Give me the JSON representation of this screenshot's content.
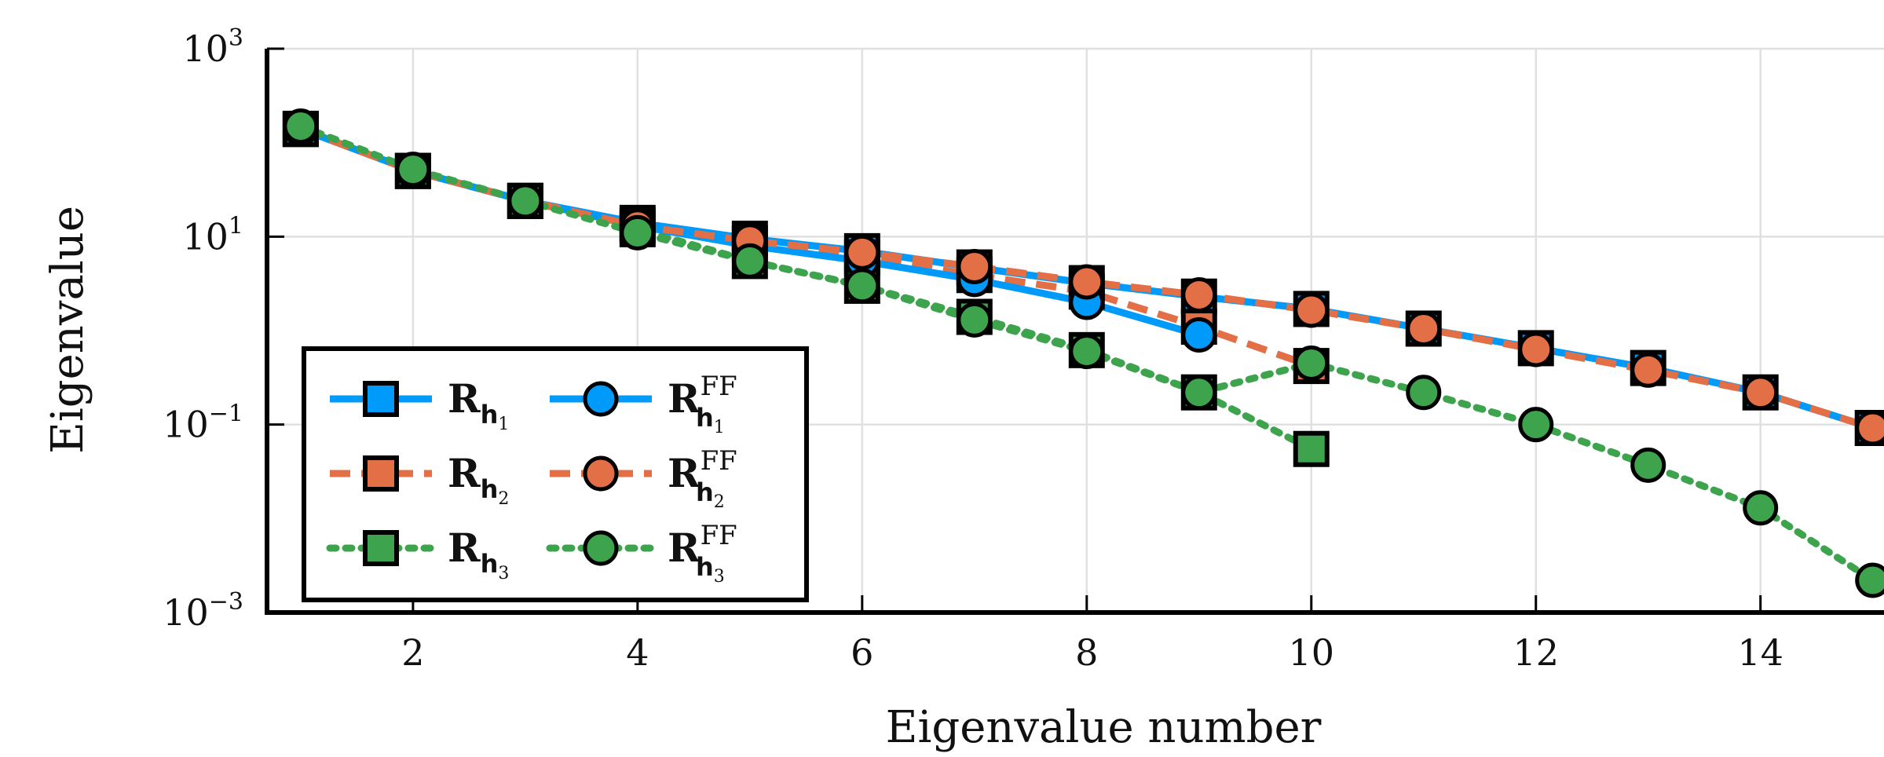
{
  "chart_data": {
    "type": "line",
    "xlabel": "Eigenvalue number",
    "ylabel": "Eigenvalue",
    "xlim": [
      0.7,
      15.1
    ],
    "ylim_log10": [
      -3,
      3
    ],
    "yscale": "log",
    "grid": true,
    "legend_placement": "bottom-left",
    "x_ticks": [
      "2",
      "4",
      "6",
      "8",
      "10",
      "12",
      "14"
    ],
    "y_ticks": [
      {
        "base": "10",
        "exp": "3",
        "log10": 3
      },
      {
        "base": "10",
        "exp": "1",
        "log10": 1
      },
      {
        "base": "10",
        "exp": "−1",
        "log10": -1
      },
      {
        "base": "10",
        "exp": "−3",
        "log10": -3
      }
    ],
    "x": [
      1,
      2,
      3,
      4,
      5,
      6,
      7,
      8,
      9,
      10,
      11,
      12,
      13,
      14,
      15
    ],
    "series": [
      {
        "name": "R_h1",
        "label_main": "R",
        "label_sub": "h",
        "label_subsub": "1",
        "label_sup": "",
        "color": "#009AFA",
        "dash": "solid",
        "marker": "square",
        "values": [
          140,
          50,
          24,
          14,
          9.5,
          7.0,
          4.7,
          3.2,
          2.3,
          1.7,
          1.05,
          0.65,
          0.4,
          0.22,
          0.092
        ]
      },
      {
        "name": "R_h2",
        "label_main": "R",
        "label_sub": "h",
        "label_subsub": "2",
        "label_sup": "",
        "color": "#E26F46",
        "dash": "dash",
        "marker": "square",
        "values": [
          140,
          50,
          24,
          13,
          8.5,
          6.0,
          3.9,
          2.6,
          1.1,
          0.42,
          null,
          null,
          null,
          null,
          null
        ]
      },
      {
        "name": "R_h3",
        "label_main": "R",
        "label_sub": "h",
        "label_subsub": "3",
        "label_sup": "",
        "color": "#3DA44D",
        "dash": "dot",
        "marker": "square",
        "values": [
          140,
          50,
          24,
          12,
          5.5,
          3.0,
          1.4,
          0.62,
          0.22,
          0.055,
          null,
          null,
          null,
          null,
          null
        ]
      },
      {
        "name": "R_h1^FF",
        "label_main": "R",
        "label_sub": "h",
        "label_subsub": "1",
        "label_sup": "FF",
        "color": "#009AFA",
        "dash": "solid",
        "marker": "circle",
        "values": [
          140,
          50,
          24,
          13,
          8.0,
          5.5,
          3.5,
          2.0,
          0.9,
          null,
          null,
          null,
          null,
          null,
          null
        ]
      },
      {
        "name": "R_h2^FF",
        "label_main": "R",
        "label_sub": "h",
        "label_subsub": "2",
        "label_sup": "FF",
        "color": "#E26F46",
        "dash": "dash",
        "marker": "circle",
        "values": [
          140,
          50,
          24,
          13,
          9.0,
          6.8,
          4.8,
          3.3,
          2.4,
          1.65,
          1.05,
          0.63,
          0.38,
          0.22,
          0.092
        ]
      },
      {
        "name": "R_h3^FF",
        "label_main": "R",
        "label_sub": "h",
        "label_subsub": "3",
        "label_sup": "FF",
        "color": "#3DA44D",
        "dash": "dot",
        "marker": "circle",
        "values": [
          150,
          52,
          24,
          11,
          5.5,
          3.0,
          1.3,
          0.6,
          0.22,
          0.45,
          0.22,
          0.1,
          0.037,
          0.013,
          0.0022
        ]
      }
    ]
  }
}
